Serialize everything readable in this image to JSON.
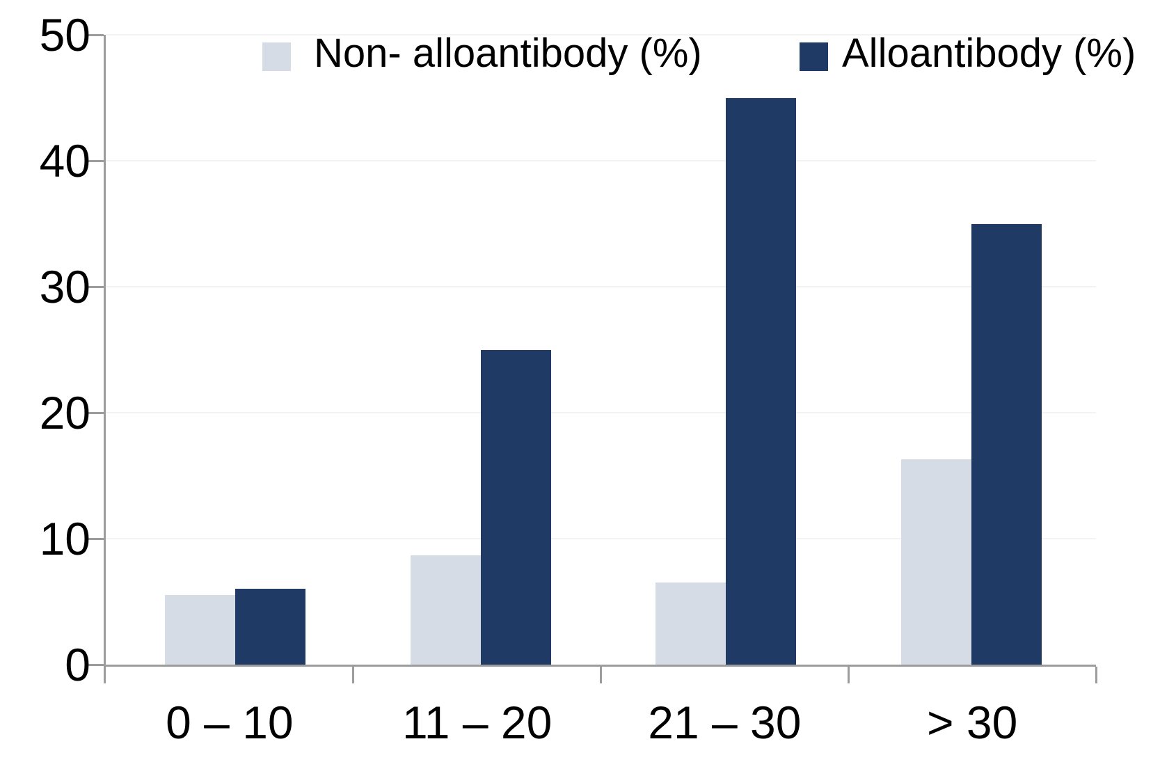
{
  "chart_data": {
    "type": "bar",
    "title": "",
    "xlabel": "",
    "ylabel": "",
    "categories": [
      "0 – 10",
      "11 – 20",
      "21 – 30",
      "> 30"
    ],
    "series": [
      {
        "name": "Non- alloantibody (%)",
        "color": "#d6dce5",
        "values": [
          5.5,
          8.7,
          6.5,
          16.3
        ]
      },
      {
        "name": "Alloantibody (%)",
        "color": "#1f3a64",
        "values": [
          6,
          25,
          45,
          35
        ]
      }
    ],
    "ylim": [
      0,
      50
    ],
    "yticks": [
      0,
      10,
      20,
      30,
      40,
      50
    ],
    "ytick_labels": [
      "0",
      "10",
      "20",
      "30",
      "40",
      "50"
    ],
    "grid": "horizontal-faint",
    "legend_position": "top"
  },
  "colors": {
    "background": "#ffffff",
    "axis": "#9c9c9c",
    "gridline": "#f3f3f3",
    "series_non_alloantibody": "#d6dce5",
    "series_alloantibody": "#1f3a64",
    "text": "#000000"
  }
}
